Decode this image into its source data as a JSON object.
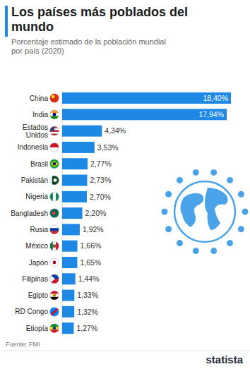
{
  "chart_data": {
    "type": "bar",
    "orientation": "horizontal",
    "title": "Los países más poblados del mundo",
    "subtitle": "Porcentaje estimado de la población mundial por país (2020)",
    "categories": [
      "China",
      "India",
      "Estados Unidos",
      "Indonesia",
      "Brasil",
      "Pakistán",
      "Nigeria",
      "Bangladesh",
      "Rusia",
      "México",
      "Japón",
      "Filipinas",
      "Egipto",
      "RD Congo",
      "Etiopía"
    ],
    "values": [
      18.4,
      17.94,
      4.34,
      3.53,
      2.77,
      2.73,
      2.7,
      2.2,
      1.92,
      1.66,
      1.65,
      1.44,
      1.33,
      1.32,
      1.27
    ],
    "value_labels": [
      "18,40%",
      "17,94%",
      "4,34%",
      "3,53%",
      "2,77%",
      "2,73%",
      "2,70%",
      "2,20%",
      "1,92%",
      "1,66%",
      "1,65%",
      "1,44%",
      "1,33%",
      "1,32%",
      "1,27%"
    ],
    "color": "#1e88e5",
    "xlim": [
      0,
      18.4
    ],
    "data_labels": true,
    "tick_labels": false,
    "grid": false,
    "source": "Fuente: FMI",
    "brand": "statista"
  }
}
